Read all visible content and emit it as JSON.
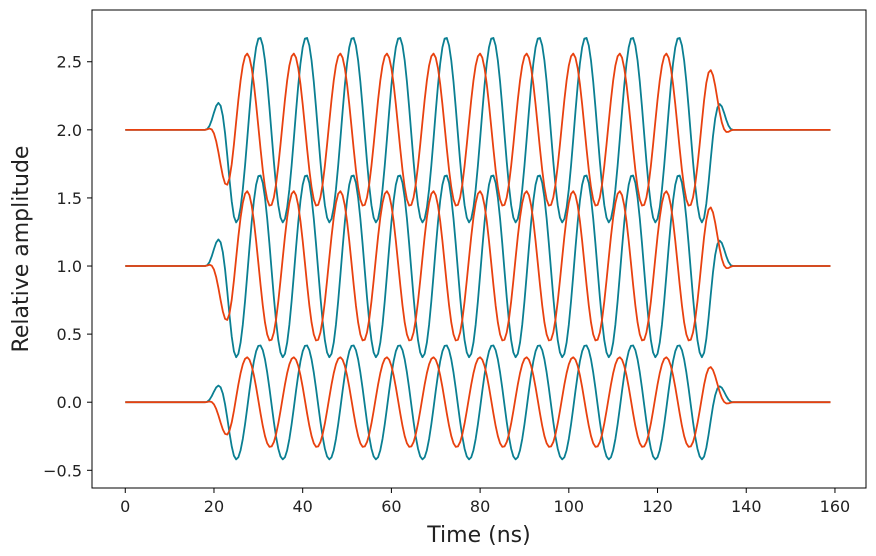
{
  "chart_data": {
    "type": "line",
    "title": "",
    "xlabel": "Time (ns)",
    "ylabel": "Relative amplitude",
    "xlim": [
      -7.5,
      167
    ],
    "ylim": [
      -0.63,
      2.88
    ],
    "xticks": [
      0,
      20,
      40,
      60,
      80,
      100,
      120,
      140,
      160
    ],
    "yticks": [
      -0.5,
      0.0,
      0.5,
      1.0,
      1.5,
      2.0,
      2.5
    ],
    "xtick_labels": [
      "0",
      "20",
      "40",
      "60",
      "80",
      "100",
      "120",
      "140",
      "160"
    ],
    "ytick_labels": [
      "−0.5",
      "0.0",
      "0.5",
      "1.0",
      "1.5",
      "2.0",
      "2.5"
    ],
    "grid": false,
    "legend": "none",
    "colors": {
      "teal": "#0a7f92",
      "orange": "#e8410f"
    },
    "series": [
      {
        "color": "#0a7f92",
        "offset": 2.0,
        "amplitude": 0.68,
        "period": 10.5,
        "phase": 0.5,
        "start": 18,
        "end": 137
      },
      {
        "color": "#e8410f",
        "offset": 2.0,
        "amplitude": 0.56,
        "period": 10.5,
        "phase": 2.2,
        "start": 18,
        "end": 137
      },
      {
        "color": "#0a7f92",
        "offset": 1.0,
        "amplitude": 0.67,
        "period": 10.5,
        "phase": 0.5,
        "start": 18,
        "end": 137
      },
      {
        "color": "#e8410f",
        "offset": 1.0,
        "amplitude": 0.55,
        "period": 10.5,
        "phase": 2.2,
        "start": 18,
        "end": 137
      },
      {
        "color": "#0a7f92",
        "offset": 0.0,
        "amplitude": 0.42,
        "period": 10.5,
        "phase": 0.5,
        "start": 18,
        "end": 137
      },
      {
        "color": "#e8410f",
        "offset": 0.0,
        "amplitude": 0.33,
        "period": 10.5,
        "phase": 2.2,
        "start": 18,
        "end": 137
      }
    ]
  }
}
